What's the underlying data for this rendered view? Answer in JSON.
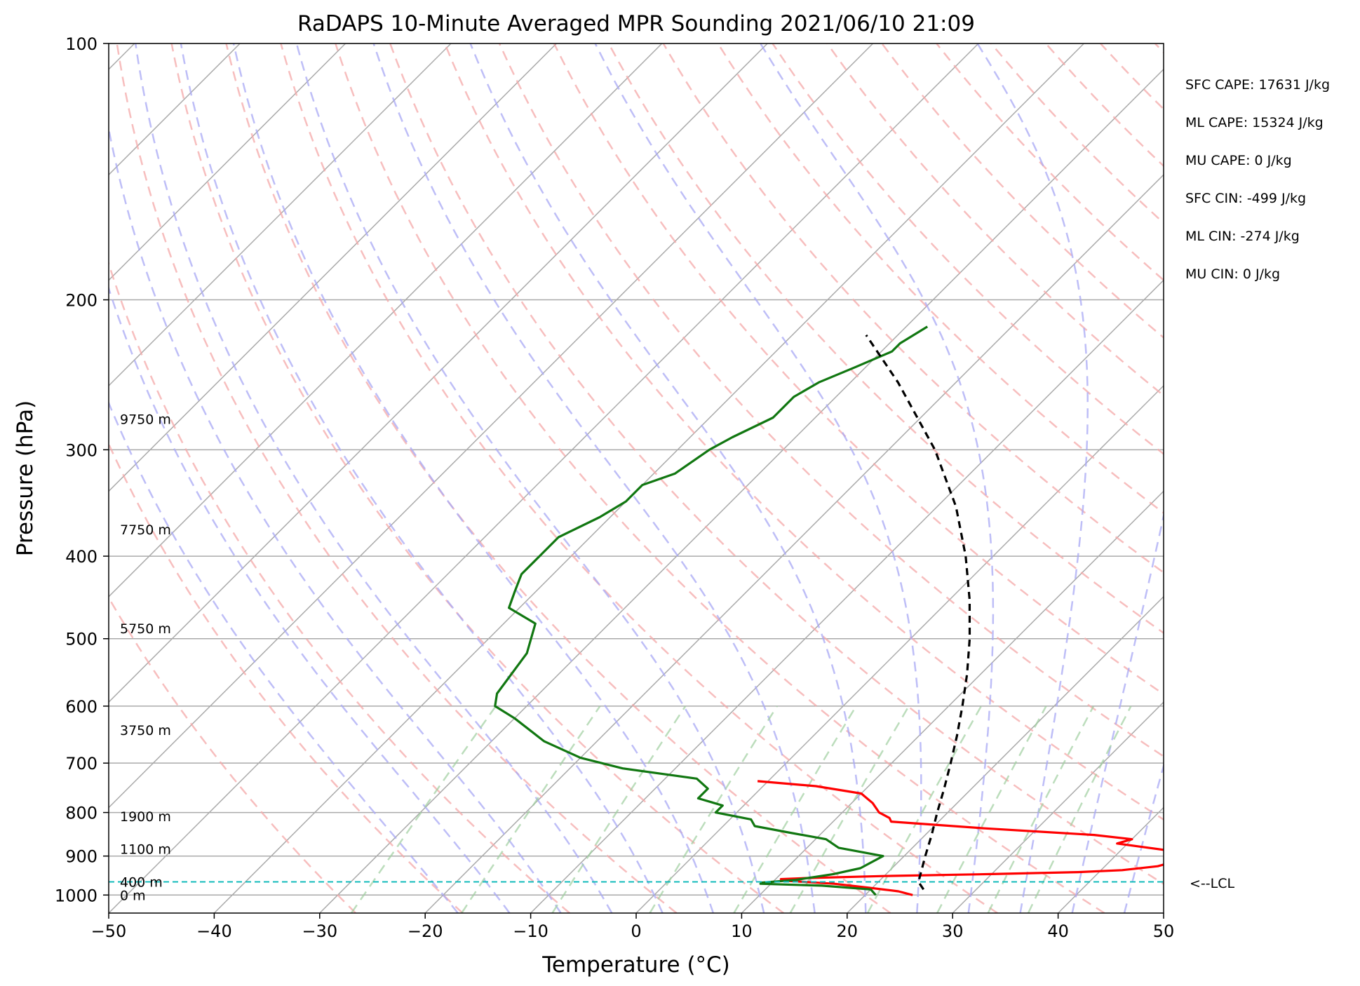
{
  "chart_data": {
    "type": "line",
    "title": "RaDAPS 10-Minute Averaged MPR Sounding 2021/06/10 21:09",
    "xlabel": "Temperature (°C)",
    "ylabel": "Pressure (hPa)",
    "xlim": [
      -50,
      50
    ],
    "ylim": [
      1050,
      100
    ],
    "y_scale": "log",
    "skew": "skew-T log-P",
    "x_ticks": [
      "−50",
      "−40",
      "−30",
      "−20",
      "−10",
      "0",
      "10",
      "20",
      "30",
      "40",
      "50"
    ],
    "y_ticks": [
      "100",
      "200",
      "300",
      "400",
      "500",
      "600",
      "700",
      "800",
      "900",
      "1000"
    ],
    "grid": true,
    "series": [
      {
        "role": "temperature",
        "color": "#ff0000",
        "points": [
          [
            1000,
            24.5
          ],
          [
            990,
            22.8
          ],
          [
            980,
            19.5
          ],
          [
            970,
            16.0
          ],
          [
            962,
            11.0
          ],
          [
            958,
            10.5
          ],
          [
            955,
            13.0
          ],
          [
            950,
            20.0
          ],
          [
            945,
            30.0
          ],
          [
            940,
            38.0
          ],
          [
            935,
            42.0
          ],
          [
            925,
            45.0
          ],
          [
            915,
            46.0
          ],
          [
            900,
            46.0
          ],
          [
            885,
            44.0
          ],
          [
            870,
            39.0
          ],
          [
            860,
            40.0
          ],
          [
            850,
            36.0
          ],
          [
            835,
            25.0
          ],
          [
            820,
            15.5
          ],
          [
            812,
            15.0
          ],
          [
            800,
            13.5
          ],
          [
            780,
            12.0
          ],
          [
            760,
            10.0
          ],
          [
            745,
            5.0
          ],
          [
            735,
            -1.0
          ]
        ]
      },
      {
        "role": "dewpoint",
        "color": "#117711",
        "points": [
          [
            1000,
            21.0
          ],
          [
            985,
            20.0
          ],
          [
            975,
            15.0
          ],
          [
            970,
            9.0
          ],
          [
            967,
            9.0
          ],
          [
            960,
            12.0
          ],
          [
            945,
            15.0
          ],
          [
            930,
            17.0
          ],
          [
            900,
            18.0
          ],
          [
            880,
            13.0
          ],
          [
            860,
            11.0
          ],
          [
            845,
            7.0
          ],
          [
            830,
            3.0
          ],
          [
            815,
            2.0
          ],
          [
            800,
            -2.0
          ],
          [
            785,
            -2.0
          ],
          [
            770,
            -5.0
          ],
          [
            750,
            -5.0
          ],
          [
            730,
            -7.0
          ],
          [
            710,
            -15.0
          ],
          [
            690,
            -20.0
          ],
          [
            660,
            -25.0
          ],
          [
            620,
            -30.0
          ],
          [
            600,
            -33.0
          ],
          [
            580,
            -34.0
          ],
          [
            520,
            -35.0
          ],
          [
            480,
            -37.0
          ],
          [
            460,
            -41.0
          ],
          [
            440,
            -42.0
          ],
          [
            420,
            -43.0
          ],
          [
            400,
            -43.0
          ],
          [
            380,
            -43.0
          ],
          [
            360,
            -41.0
          ],
          [
            345,
            -40.0
          ],
          [
            330,
            -40.0
          ],
          [
            320,
            -38.0
          ],
          [
            300,
            -37.0
          ],
          [
            290,
            -36.0
          ],
          [
            275,
            -34.0
          ],
          [
            260,
            -34.0
          ],
          [
            250,
            -33.0
          ],
          [
            240,
            -31.0
          ],
          [
            230,
            -29.0
          ],
          [
            225,
            -29.0
          ],
          [
            215,
            -28.0
          ]
        ]
      },
      {
        "role": "parcel",
        "color": "#000000",
        "dash": true,
        "points": [
          [
            985,
            25.0
          ],
          [
            965,
            23.8
          ],
          [
            950,
            23.4
          ],
          [
            900,
            22.0
          ],
          [
            850,
            20.6
          ],
          [
            800,
            19.0
          ],
          [
            750,
            17.4
          ],
          [
            700,
            15.6
          ],
          [
            650,
            13.6
          ],
          [
            600,
            11.3
          ],
          [
            550,
            8.7
          ],
          [
            500,
            5.6
          ],
          [
            450,
            1.9
          ],
          [
            400,
            -2.6
          ],
          [
            350,
            -8.2
          ],
          [
            300,
            -15.6
          ],
          [
            250,
            -25.5
          ],
          [
            220,
            -33.0
          ]
        ]
      }
    ],
    "lcl_pressure": 965,
    "lcl_label": "<--LCL",
    "height_labels": [
      {
        "p": 1000,
        "text": "0 m"
      },
      {
        "p": 965,
        "text": "400 m"
      },
      {
        "p": 883,
        "text": "1100 m"
      },
      {
        "p": 808,
        "text": "1900 m"
      },
      {
        "p": 640,
        "text": "3750 m"
      },
      {
        "p": 486,
        "text": "5750 m"
      },
      {
        "p": 372,
        "text": "7750 m"
      },
      {
        "p": 276,
        "text": "9750 m"
      }
    ],
    "indices": [
      "SFC CAPE: 17631 J/kg",
      "ML CAPE: 15324 J/kg",
      "MU CAPE: 0 J/kg",
      "SFC CIN: -499 J/kg",
      "ML CIN: -274 J/kg",
      "MU CIN: 0 J/kg"
    ],
    "colors": {
      "isotherm": "#aaaaaa",
      "isobar": "#aaaaaa",
      "dry_adiabat": "#f4a8a8",
      "moist_adiabat": "#a8a8f4",
      "mixing_ratio": "#9fcf9f",
      "lcl_line": "#11bbbb"
    }
  }
}
